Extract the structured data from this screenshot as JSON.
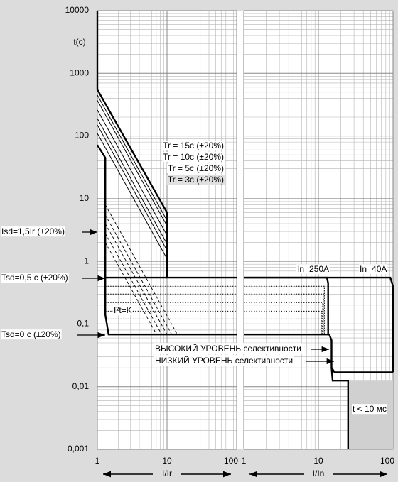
{
  "chart_data": [
    {
      "type": "line",
      "log_x": true,
      "log_y": true,
      "grid": true,
      "minor_grid": true,
      "ylabel": "t(c)",
      "xlabel": "I/Ir",
      "xlim": [
        1,
        100
      ],
      "xticks": [
        1,
        10,
        100
      ],
      "ylim": [
        0.001,
        10000
      ],
      "yticks": [
        {
          "value": 0.001,
          "label": "0,001"
        },
        {
          "value": 0.01,
          "label": "0,01"
        },
        {
          "value": 0.1,
          "label": "0,1"
        },
        1,
        10,
        100,
        1000,
        10000
      ],
      "annotations": [
        "Tr = 15c (±20%)",
        "Tr = 10c (±20%)",
        "Tr = 5c (±20%)",
        "Tr = 3c (±20%)",
        "Isd=1,5Ir (±20%)",
        "Tsd=0,5 c (±20%)",
        "Tsd=0 c (±20%)",
        "I²t=K"
      ],
      "series": [
        {
          "style": "thick",
          "x": [
            1,
            1,
            10,
            10,
            100
          ],
          "values": [
            10000,
            550,
            6,
            0.55,
            0.55
          ]
        },
        {
          "style": "thin",
          "x": [
            1,
            10
          ],
          "values": [
            450,
            4.5
          ]
        },
        {
          "style": "thin",
          "x": [
            1,
            10
          ],
          "values": [
            370,
            3.7
          ]
        },
        {
          "style": "thin",
          "x": [
            1,
            10
          ],
          "values": [
            260,
            2.6
          ]
        },
        {
          "style": "thin",
          "x": [
            1,
            10
          ],
          "values": [
            190,
            1.9
          ]
        },
        {
          "style": "thin",
          "x": [
            1,
            10
          ],
          "values": [
            150,
            1.5
          ]
        },
        {
          "style": "thin",
          "x": [
            1,
            10
          ],
          "values": [
            110,
            1.1
          ]
        },
        {
          "style": "thick",
          "x": [
            1,
            1.3,
            1.3,
            1.45,
            100
          ],
          "values": [
            72,
            45,
            0.14,
            0.068,
            0.068
          ]
        },
        {
          "style": "thick",
          "x": [
            1.3,
            10
          ],
          "values": [
            0.55,
            0.55
          ]
        },
        {
          "style": "dashed",
          "x": [
            1.3,
            14.1
          ],
          "values": [
            8,
            0.068
          ]
        },
        {
          "style": "dashed",
          "x": [
            1.3,
            11.7
          ],
          "values": [
            5.5,
            0.068
          ]
        },
        {
          "style": "dashed",
          "x": [
            1.3,
            10
          ],
          "values": [
            4,
            0.068
          ]
        },
        {
          "style": "dashed",
          "x": [
            1.3,
            8.4
          ],
          "values": [
            2.8,
            0.068
          ]
        },
        {
          "style": "dashed",
          "x": [
            1.3,
            7.1
          ],
          "values": [
            2,
            0.068
          ]
        },
        {
          "style": "dotted",
          "x": [
            1.3,
            100
          ],
          "values": [
            0.4,
            0.4
          ]
        },
        {
          "style": "dotted",
          "x": [
            1.3,
            100
          ],
          "values": [
            0.3,
            0.3
          ]
        },
        {
          "style": "dotted",
          "x": [
            1.3,
            100
          ],
          "values": [
            0.22,
            0.22
          ]
        },
        {
          "style": "dotted",
          "x": [
            1.3,
            100
          ],
          "values": [
            0.16,
            0.16
          ]
        },
        {
          "style": "dotted",
          "x": [
            1.3,
            100
          ],
          "values": [
            0.12,
            0.12
          ]
        }
      ]
    },
    {
      "type": "line",
      "log_x": true,
      "log_y": true,
      "grid": true,
      "minor_grid": true,
      "xlabel": "I/In",
      "xlim": [
        1,
        100
      ],
      "xticks": [
        1,
        10,
        100
      ],
      "ylim": [
        0.001,
        10000
      ],
      "yticks": [
        0.001,
        0.01,
        0.1,
        1,
        10,
        100,
        1000,
        10000
      ],
      "annotations": [
        "In=250A",
        "In=40A",
        "ВЫСОКИЙ УРОВЕНЬ селективности",
        "НИЗКИЙ УРОВЕНЬ селективности",
        "t < 10 мс"
      ],
      "series": [
        {
          "style": "thick",
          "x": [
            1,
            92,
            100,
            100
          ],
          "values": [
            0.55,
            0.55,
            0.4,
            0.017
          ]
        },
        {
          "style": "thick",
          "x": [
            1,
            13,
            13.5,
            13.5
          ],
          "values": [
            0.55,
            0.55,
            0.45,
            0.07
          ]
        },
        {
          "style": "thick",
          "x": [
            1,
            14,
            15,
            15,
            16.5,
            100
          ],
          "values": [
            0.068,
            0.068,
            0.055,
            0.02,
            0.017,
            0.017
          ]
        },
        {
          "style": "thick",
          "x": [
            15,
            15.5,
            25,
            25
          ],
          "values": [
            0.02,
            0.0125,
            0.0125,
            0.001
          ]
        },
        {
          "style": "dotted",
          "x": [
            1,
            12,
            12
          ],
          "values": [
            0.4,
            0.4,
            0.068
          ]
        },
        {
          "style": "dotted",
          "x": [
            1,
            11.7,
            11.7
          ],
          "values": [
            0.3,
            0.3,
            0.068
          ]
        },
        {
          "style": "dotted",
          "x": [
            1,
            11.4,
            11.4
          ],
          "values": [
            0.22,
            0.22,
            0.068
          ]
        },
        {
          "style": "dotted",
          "x": [
            1,
            11.1,
            11.1
          ],
          "values": [
            0.16,
            0.16,
            0.068
          ]
        },
        {
          "style": "dotted",
          "x": [
            1,
            10.8,
            10.8
          ],
          "values": [
            0.12,
            0.12,
            0.068
          ]
        }
      ]
    }
  ]
}
